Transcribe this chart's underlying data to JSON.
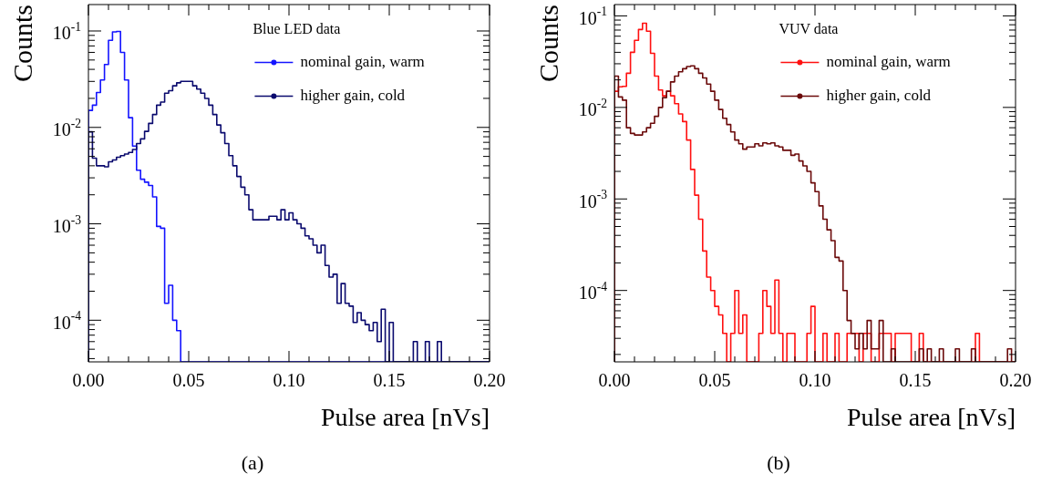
{
  "chart_data": [
    {
      "type": "histogram",
      "xlabel": "Pulse area [nVs]",
      "ylabel": "Counts",
      "legend_title": "Blue LED data",
      "legend": "top right",
      "log": true,
      "annotations": [
        "(a)"
      ],
      "xlim": [
        0,
        0.2
      ],
      "ylim": [
        3.7e-05,
        0.188
      ],
      "xticks": [
        {
          "value": 0,
          "label": "0.00"
        },
        {
          "value": 0.01,
          "label": null
        },
        {
          "value": 0.02,
          "label": null
        },
        {
          "value": 0.03,
          "label": null
        },
        {
          "value": 0.04,
          "label": null
        },
        {
          "value": 0.05,
          "label": "0.05"
        },
        {
          "value": 0.06,
          "label": null
        },
        {
          "value": 0.07,
          "label": null
        },
        {
          "value": 0.08,
          "label": null
        },
        {
          "value": 0.09,
          "label": null
        },
        {
          "value": 0.1,
          "label": "0.10"
        },
        {
          "value": 0.11,
          "label": null
        },
        {
          "value": 0.12,
          "label": null
        },
        {
          "value": 0.13,
          "label": null
        },
        {
          "value": 0.14,
          "label": null
        },
        {
          "value": 0.15,
          "label": "0.15"
        },
        {
          "value": 0.16,
          "label": null
        },
        {
          "value": 0.17,
          "label": null
        },
        {
          "value": 0.18,
          "label": null
        },
        {
          "value": 0.19,
          "label": null
        },
        {
          "value": 0.2,
          "label": "0.20"
        }
      ],
      "yticks": [
        {
          "value": 4e-05,
          "label": null
        },
        {
          "value": 5e-05,
          "label": null
        },
        {
          "value": 6e-05,
          "label": null
        },
        {
          "value": 7e-05,
          "label": null
        },
        {
          "value": 8e-05,
          "label": null
        },
        {
          "value": 9e-05,
          "label": null
        },
        {
          "value": 0.0001,
          "label": "10$^{-4}$"
        },
        {
          "value": 0.0002,
          "label": null
        },
        {
          "value": 0.0003,
          "label": null
        },
        {
          "value": 0.0004,
          "label": null
        },
        {
          "value": 0.0005,
          "label": null
        },
        {
          "value": 0.0006,
          "label": null
        },
        {
          "value": 0.0007,
          "label": null
        },
        {
          "value": 0.0008,
          "label": null
        },
        {
          "value": 0.0009,
          "label": null
        },
        {
          "value": 0.001,
          "label": "10$^{-3}$"
        },
        {
          "value": 0.002,
          "label": null
        },
        {
          "value": 0.003,
          "label": null
        },
        {
          "value": 0.004,
          "label": null
        },
        {
          "value": 0.005,
          "label": null
        },
        {
          "value": 0.006,
          "label": null
        },
        {
          "value": 0.007,
          "label": null
        },
        {
          "value": 0.008,
          "label": null
        },
        {
          "value": 0.009,
          "label": null
        },
        {
          "value": 0.01,
          "label": "10$^{-2}$"
        },
        {
          "value": 0.02,
          "label": null
        },
        {
          "value": 0.03,
          "label": null
        },
        {
          "value": 0.04,
          "label": null
        },
        {
          "value": 0.05,
          "label": null
        },
        {
          "value": 0.06,
          "label": null
        },
        {
          "value": 0.07,
          "label": null
        },
        {
          "value": 0.08,
          "label": null
        },
        {
          "value": 0.09,
          "label": null
        },
        {
          "value": 0.1,
          "label": "10$^{-1}$"
        }
      ],
      "bins": [
        0,
        0.002,
        0.004,
        0.006,
        0.008,
        0.01,
        0.012,
        0.014,
        0.016,
        0.018,
        0.02,
        0.022,
        0.024,
        0.026,
        0.028,
        0.03,
        0.032,
        0.034,
        0.036,
        0.038,
        0.04,
        0.042,
        0.044,
        0.046,
        0.048,
        0.05,
        0.052,
        0.054,
        0.056,
        0.058,
        0.06,
        0.062,
        0.064,
        0.066,
        0.068,
        0.07,
        0.072,
        0.074,
        0.076,
        0.078,
        0.08,
        0.082,
        0.084,
        0.086,
        0.088,
        0.09,
        0.092,
        0.094,
        0.096,
        0.098,
        0.1,
        0.102,
        0.104,
        0.106,
        0.108,
        0.11,
        0.112,
        0.114,
        0.116,
        0.118,
        0.12,
        0.122,
        0.124,
        0.126,
        0.128,
        0.13,
        0.132,
        0.134,
        0.136,
        0.138,
        0.14,
        0.142,
        0.144,
        0.146,
        0.148,
        0.15,
        0.152,
        0.154,
        0.156,
        0.158,
        0.16,
        0.162,
        0.164,
        0.166,
        0.168,
        0.17,
        0.172,
        0.174,
        0.176,
        0.178,
        0.18,
        0.182,
        0.184,
        0.186,
        0.188,
        0.19,
        0.192,
        0.194,
        0.196,
        0.198,
        0.2
      ],
      "series": [
        {
          "name": "nominal gain, warm",
          "color": "#1414ff",
          "values": [
            0.015,
            0.017,
            0.023,
            0.031,
            0.045,
            0.08,
            0.098,
            0.099,
            0.06,
            0.031,
            0.0126,
            0.0064,
            0.0036,
            0.0029,
            0.0027,
            0.0025,
            0.0019,
            0.00094,
            0.0009,
            0.00015,
            0.00023,
            0.0001,
            7.8e-05,
            null,
            null,
            null,
            null,
            null,
            null,
            null,
            null,
            null,
            null,
            null,
            null,
            null,
            null,
            null,
            null,
            null,
            null,
            null,
            null,
            null,
            null,
            null,
            null,
            null,
            null,
            null,
            null,
            null,
            null,
            null,
            null,
            null,
            null,
            null,
            null,
            null,
            null,
            null,
            null,
            null,
            null,
            null,
            null,
            null,
            null,
            null,
            null,
            null,
            null,
            null,
            null,
            null,
            null,
            null,
            null,
            null,
            null,
            null,
            null,
            null,
            null,
            null,
            null,
            null,
            null,
            null,
            null,
            null,
            null,
            null,
            null,
            null,
            null,
            null,
            null,
            null
          ]
        },
        {
          "name": "higher gain, cold",
          "color": "#0a0a6e",
          "values": [
            0.009,
            0.0048,
            0.004,
            0.004,
            0.0039,
            0.0044,
            0.0046,
            0.0049,
            0.0051,
            0.0053,
            0.0055,
            0.0059,
            0.0068,
            0.0076,
            0.0091,
            0.011,
            0.0136,
            0.017,
            0.0183,
            0.0226,
            0.024,
            0.027,
            0.029,
            0.03,
            0.03,
            0.03,
            0.027,
            0.025,
            0.0226,
            0.02,
            0.017,
            0.0136,
            0.0106,
            0.0088,
            0.0068,
            0.0051,
            0.004,
            0.0031,
            0.0024,
            0.002,
            0.0014,
            0.0011,
            0.0011,
            0.0011,
            0.0011,
            0.0012,
            0.0012,
            0.0011,
            0.0014,
            0.0011,
            0.0013,
            0.0011,
            0.001,
            0.0009,
            0.00075,
            0.0007,
            0.0006,
            0.0005,
            0.0006,
            0.00037,
            0.00028,
            0.0003,
            0.00015,
            0.00024,
            0.00015,
            0.00014,
            9.5e-05,
            0.00012,
            0.0001,
            9e-05,
            7.8e-05,
            9.5e-05,
            6e-05,
            0.00013,
            null,
            9.5e-05,
            null,
            null,
            null,
            null,
            null,
            6e-05,
            null,
            null,
            6e-05,
            null,
            null,
            6e-05,
            null,
            null,
            null,
            null,
            null,
            null,
            null,
            null,
            null,
            null,
            null,
            null
          ]
        }
      ]
    },
    {
      "type": "histogram",
      "xlabel": "Pulse area [nVs]",
      "ylabel": "Counts",
      "legend_title": "VUV data",
      "legend": "top right",
      "log": true,
      "annotations": [
        "(b)"
      ],
      "xlim": [
        0,
        0.2
      ],
      "ylim": [
        1.66e-05,
        0.133
      ],
      "xticks": [
        {
          "value": 0,
          "label": "0.00"
        },
        {
          "value": 0.01,
          "label": null
        },
        {
          "value": 0.02,
          "label": null
        },
        {
          "value": 0.03,
          "label": null
        },
        {
          "value": 0.04,
          "label": null
        },
        {
          "value": 0.05,
          "label": "0.05"
        },
        {
          "value": 0.06,
          "label": null
        },
        {
          "value": 0.07,
          "label": null
        },
        {
          "value": 0.08,
          "label": null
        },
        {
          "value": 0.09,
          "label": null
        },
        {
          "value": 0.1,
          "label": "0.10"
        },
        {
          "value": 0.11,
          "label": null
        },
        {
          "value": 0.12,
          "label": null
        },
        {
          "value": 0.13,
          "label": null
        },
        {
          "value": 0.14,
          "label": null
        },
        {
          "value": 0.15,
          "label": "0.15"
        },
        {
          "value": 0.16,
          "label": null
        },
        {
          "value": 0.17,
          "label": null
        },
        {
          "value": 0.18,
          "label": null
        },
        {
          "value": 0.19,
          "label": null
        },
        {
          "value": 0.2,
          "label": "0.20"
        }
      ],
      "yticks": [
        {
          "value": 2e-05,
          "label": null
        },
        {
          "value": 3e-05,
          "label": null
        },
        {
          "value": 4e-05,
          "label": null
        },
        {
          "value": 5e-05,
          "label": null
        },
        {
          "value": 6e-05,
          "label": null
        },
        {
          "value": 7e-05,
          "label": null
        },
        {
          "value": 8e-05,
          "label": null
        },
        {
          "value": 9e-05,
          "label": null
        },
        {
          "value": 0.0001,
          "label": "10$^{-4}$"
        },
        {
          "value": 0.0002,
          "label": null
        },
        {
          "value": 0.0003,
          "label": null
        },
        {
          "value": 0.0004,
          "label": null
        },
        {
          "value": 0.0005,
          "label": null
        },
        {
          "value": 0.0006,
          "label": null
        },
        {
          "value": 0.0007,
          "label": null
        },
        {
          "value": 0.0008,
          "label": null
        },
        {
          "value": 0.0009,
          "label": null
        },
        {
          "value": 0.001,
          "label": "10$^{-3}$"
        },
        {
          "value": 0.002,
          "label": null
        },
        {
          "value": 0.003,
          "label": null
        },
        {
          "value": 0.004,
          "label": null
        },
        {
          "value": 0.005,
          "label": null
        },
        {
          "value": 0.006,
          "label": null
        },
        {
          "value": 0.007,
          "label": null
        },
        {
          "value": 0.008,
          "label": null
        },
        {
          "value": 0.009,
          "label": null
        },
        {
          "value": 0.01,
          "label": "10$^{-2}$"
        },
        {
          "value": 0.02,
          "label": null
        },
        {
          "value": 0.03,
          "label": null
        },
        {
          "value": 0.04,
          "label": null
        },
        {
          "value": 0.05,
          "label": null
        },
        {
          "value": 0.06,
          "label": null
        },
        {
          "value": 0.07,
          "label": null
        },
        {
          "value": 0.08,
          "label": null
        },
        {
          "value": 0.09,
          "label": null
        },
        {
          "value": 0.1,
          "label": "10$^{-1}$"
        }
      ],
      "bins": [
        0,
        0.002,
        0.004,
        0.006,
        0.008,
        0.01,
        0.012,
        0.014,
        0.016,
        0.018,
        0.02,
        0.022,
        0.024,
        0.026,
        0.028,
        0.03,
        0.032,
        0.034,
        0.036,
        0.038,
        0.04,
        0.042,
        0.044,
        0.046,
        0.048,
        0.05,
        0.052,
        0.054,
        0.056,
        0.058,
        0.06,
        0.062,
        0.064,
        0.066,
        0.068,
        0.07,
        0.072,
        0.074,
        0.076,
        0.078,
        0.08,
        0.082,
        0.084,
        0.086,
        0.088,
        0.09,
        0.092,
        0.094,
        0.096,
        0.098,
        0.1,
        0.102,
        0.104,
        0.106,
        0.108,
        0.11,
        0.112,
        0.114,
        0.116,
        0.118,
        0.12,
        0.122,
        0.124,
        0.126,
        0.128,
        0.13,
        0.132,
        0.134,
        0.136,
        0.138,
        0.14,
        0.142,
        0.144,
        0.146,
        0.148,
        0.15,
        0.152,
        0.154,
        0.156,
        0.158,
        0.16,
        0.162,
        0.164,
        0.166,
        0.168,
        0.17,
        0.172,
        0.174,
        0.176,
        0.178,
        0.18,
        0.182,
        0.184,
        0.186,
        0.188,
        0.19,
        0.192,
        0.194,
        0.196,
        0.198,
        0.2
      ],
      "series": [
        {
          "name": "nominal gain, warm",
          "color": "#ff1010",
          "values": [
            0.015,
            0.0168,
            0.017,
            0.0236,
            0.04,
            0.054,
            0.071,
            0.083,
            0.068,
            0.039,
            0.022,
            0.0155,
            0.0134,
            0.015,
            0.0134,
            0.011,
            0.0085,
            0.007,
            0.0044,
            0.0021,
            0.0011,
            0.0006,
            0.00027,
            0.00014,
            0.0001,
            6.7e-05,
            5.4e-05,
            3.4e-05,
            null,
            3.4e-05,
            0.0001,
            3.4e-05,
            5.4e-05,
            null,
            null,
            null,
            3.4e-05,
            0.0001,
            6.7e-05,
            3.4e-05,
            0.00013,
            3.4e-05,
            null,
            3.4e-05,
            3.4e-05,
            null,
            null,
            null,
            3.4e-05,
            6.7e-05,
            null,
            null,
            3.4e-05,
            null,
            null,
            3.4e-05,
            null,
            null,
            3.4e-05,
            3.4e-05,
            3.4e-05,
            null,
            3.4e-05,
            3.4e-05,
            null,
            null,
            3.4e-05,
            3.4e-05,
            3.4e-05,
            null,
            3.4e-05,
            3.4e-05,
            3.4e-05,
            3.4e-05,
            null,
            null,
            3.4e-05,
            null,
            null,
            null,
            null,
            null,
            null,
            null,
            null,
            null,
            null,
            null,
            null,
            null,
            3.4e-05,
            null,
            null,
            null,
            null,
            null,
            null,
            null,
            null,
            null
          ]
        },
        {
          "name": "higher gain, cold",
          "color": "#6b0a0a",
          "values": [
            0.022,
            0.013,
            0.012,
            0.006,
            0.0052,
            0.005,
            0.005,
            0.0054,
            0.006,
            0.0067,
            0.008,
            0.01,
            0.0128,
            0.015,
            0.019,
            0.022,
            0.0245,
            0.0265,
            0.028,
            0.0285,
            0.0265,
            0.0236,
            0.021,
            0.018,
            0.015,
            0.012,
            0.0095,
            0.0076,
            0.0065,
            0.0054,
            0.0044,
            0.004,
            0.0035,
            0.0037,
            0.0037,
            0.004,
            0.0038,
            0.0041,
            0.004,
            0.0041,
            0.0038,
            0.0037,
            0.0034,
            0.0034,
            0.003,
            0.0031,
            0.0026,
            0.0023,
            0.002,
            0.0015,
            0.0012,
            0.00084,
            0.0006,
            0.00046,
            0.00035,
            0.00023,
            0.00021,
            0.0001,
            4.7e-05,
            3.4e-05,
            2.3e-05,
            3.4e-05,
            2.3e-05,
            4.7e-05,
            2.3e-05,
            2.3e-05,
            4.7e-05,
            null,
            null,
            2.3e-05,
            null,
            null,
            null,
            null,
            null,
            null,
            2.3e-05,
            null,
            2.3e-05,
            null,
            null,
            2.3e-05,
            null,
            null,
            null,
            2.3e-05,
            null,
            null,
            null,
            2.3e-05,
            null,
            null,
            null,
            null,
            null,
            null,
            null,
            null,
            2.3e-05,
            null
          ]
        }
      ]
    }
  ]
}
